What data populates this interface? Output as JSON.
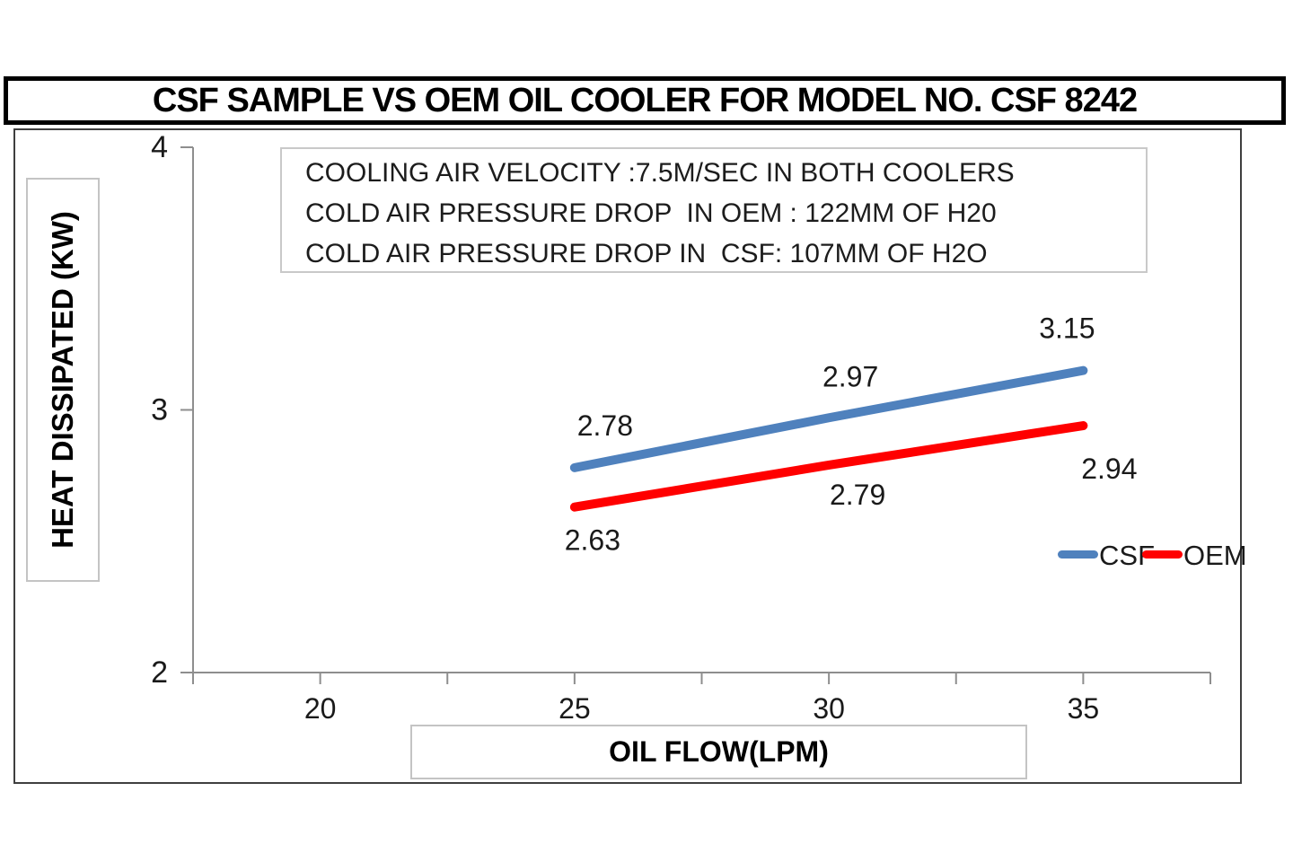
{
  "title": "CSF SAMPLE VS OEM OIL COOLER FOR MODEL NO. CSF 8242",
  "annotation": {
    "lines": [
      "COOLING AIR VELOCITY :7.5M/SEC IN BOTH COOLERS",
      "COLD AIR PRESSURE DROP  IN OEM : 122MM OF H20",
      "COLD AIR PRESSURE DROP IN  CSF: 107MM OF H2O"
    ]
  },
  "axes": {
    "x_label": "OIL FLOW(LPM)",
    "y_label": "HEAT DISSIPATED (KW)"
  },
  "legend": {
    "items": [
      {
        "label": "CSF",
        "color": "#4F81BD"
      },
      {
        "label": "OEM",
        "color": "#FF0000"
      }
    ],
    "position": "bottom-right-inside"
  },
  "chart_data": {
    "type": "line",
    "x": [
      25,
      30,
      35
    ],
    "series": [
      {
        "name": "CSF",
        "color": "#4F81BD",
        "values": [
          2.78,
          2.97,
          3.15
        ],
        "labels": [
          "2.78",
          "2.97",
          "3.15"
        ]
      },
      {
        "name": "OEM",
        "color": "#FF0000",
        "values": [
          2.63,
          2.79,
          2.94
        ],
        "labels": [
          "2.63",
          "2.79",
          "2.94"
        ]
      }
    ],
    "title": "CSF SAMPLE VS OEM OIL COOLER FOR MODEL NO. CSF 8242",
    "xlabel": "OIL FLOW(LPM)",
    "ylabel": "HEAT DISSIPATED (KW)",
    "xlim": [
      17.5,
      37.5
    ],
    "ylim": [
      2,
      4
    ],
    "xticks_minor": [
      17.5,
      20,
      22.5,
      25,
      27.5,
      30,
      32.5,
      35,
      37.5
    ],
    "xticks": [
      20,
      25,
      30,
      35
    ],
    "xtick_labels": [
      "20",
      "25",
      "30",
      "35"
    ],
    "yticks": [
      2,
      3,
      4
    ],
    "ytick_labels": [
      "2",
      "3",
      "4"
    ],
    "grid": false,
    "legend_position": "bottom-right-inside",
    "axis_color": "#8e8e8e"
  }
}
